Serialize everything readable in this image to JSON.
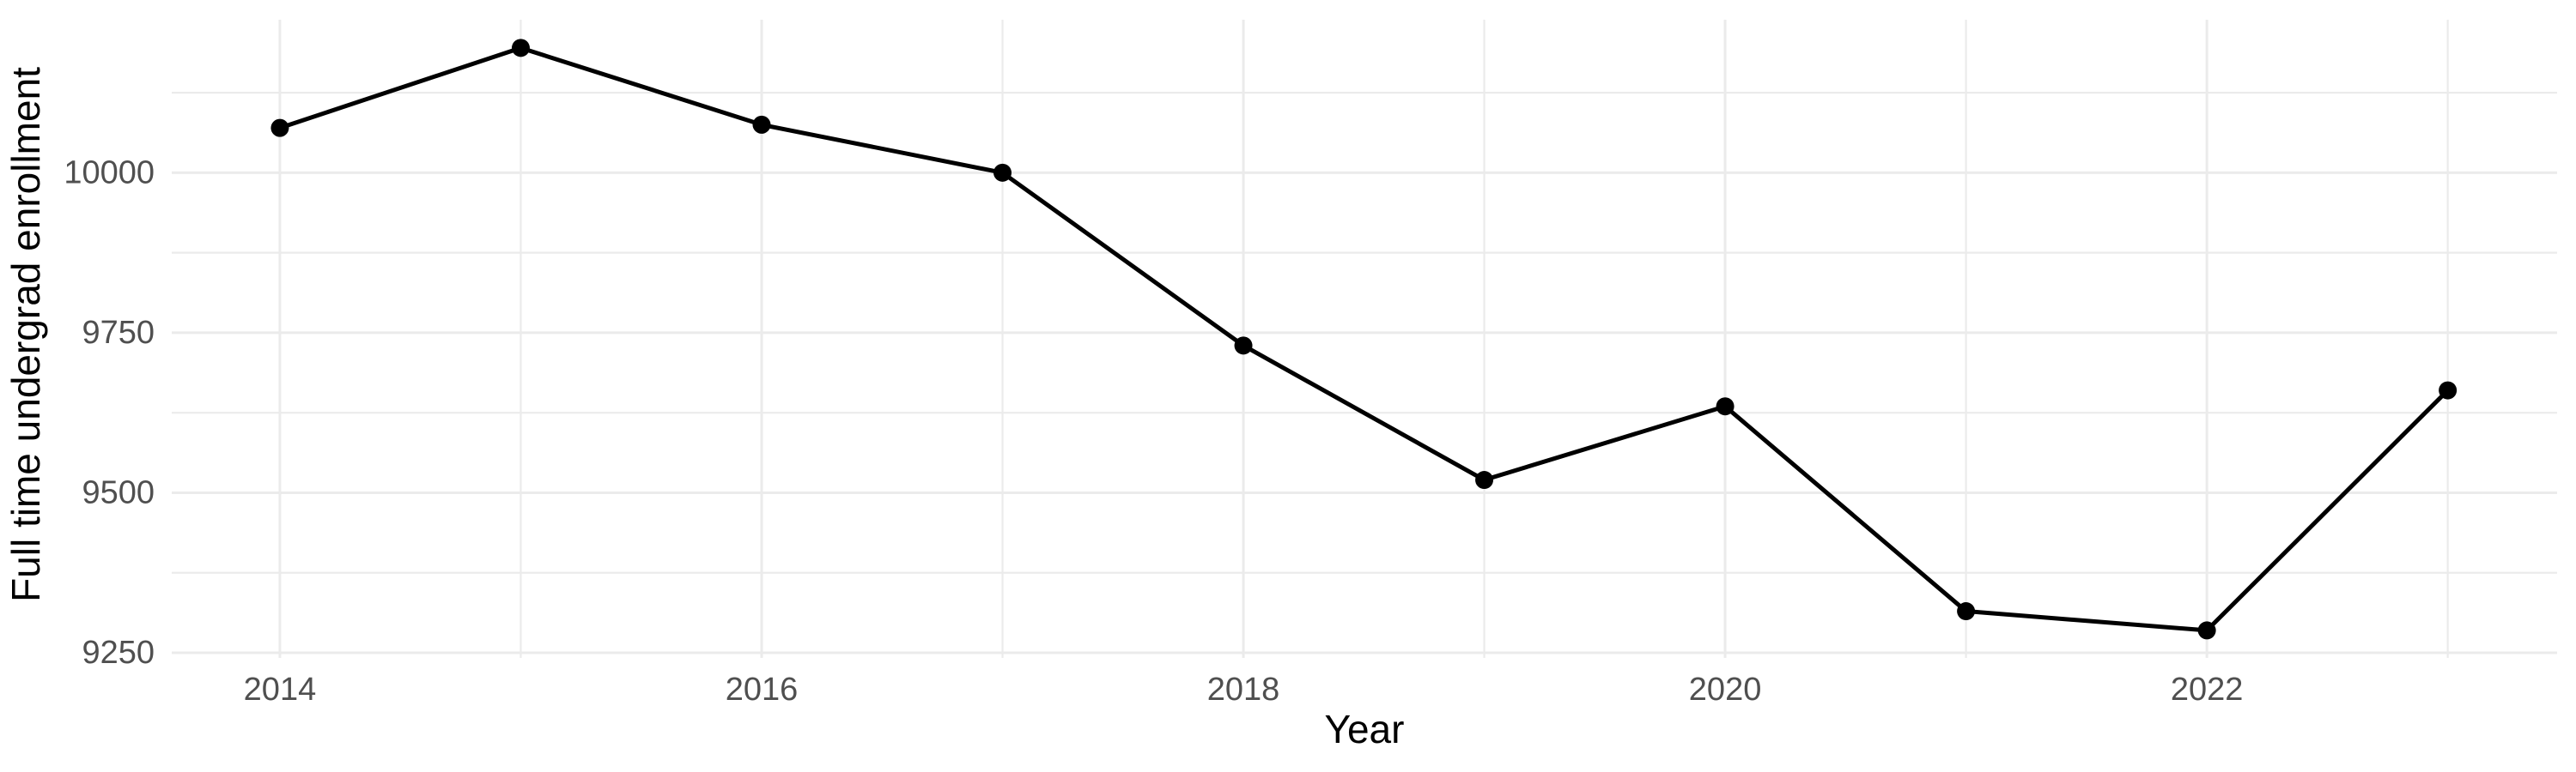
{
  "chart_data": {
    "type": "line",
    "title": "",
    "xlabel": "Year",
    "ylabel": "Full time undergrad enrollment",
    "x": [
      2014,
      2015,
      2016,
      2017,
      2018,
      2019,
      2020,
      2021,
      2022,
      2023
    ],
    "series": [
      {
        "name": "Full time undergrad enrollment",
        "values": [
          10070,
          10195,
          10075,
          10000,
          9730,
          9520,
          9635,
          9315,
          9285,
          9660
        ]
      }
    ],
    "x_major_ticks": [
      2014,
      2016,
      2018,
      2020,
      2022
    ],
    "x_tick_labels": [
      "2014",
      "2016",
      "2018",
      "2020",
      "2022"
    ],
    "x_minor_gridlines": [
      2015,
      2017,
      2019,
      2021,
      2023
    ],
    "y_major_ticks": [
      9250,
      9500,
      9750,
      10000
    ],
    "y_tick_labels": [
      "9250",
      "9500",
      "9750",
      "10000"
    ],
    "y_minor_gridlines": [
      9375,
      9625,
      9875,
      10125
    ],
    "xlim": [
      2013.551,
      2023.454
    ],
    "ylim": [
      9242,
      10239
    ],
    "grid": true,
    "legend": false,
    "colors": {
      "line": "#000000",
      "point": "#000000",
      "grid": "#ebebeb",
      "tick_label": "#4f4f4f",
      "axis_title": "#000000",
      "background": "#ffffff"
    }
  }
}
